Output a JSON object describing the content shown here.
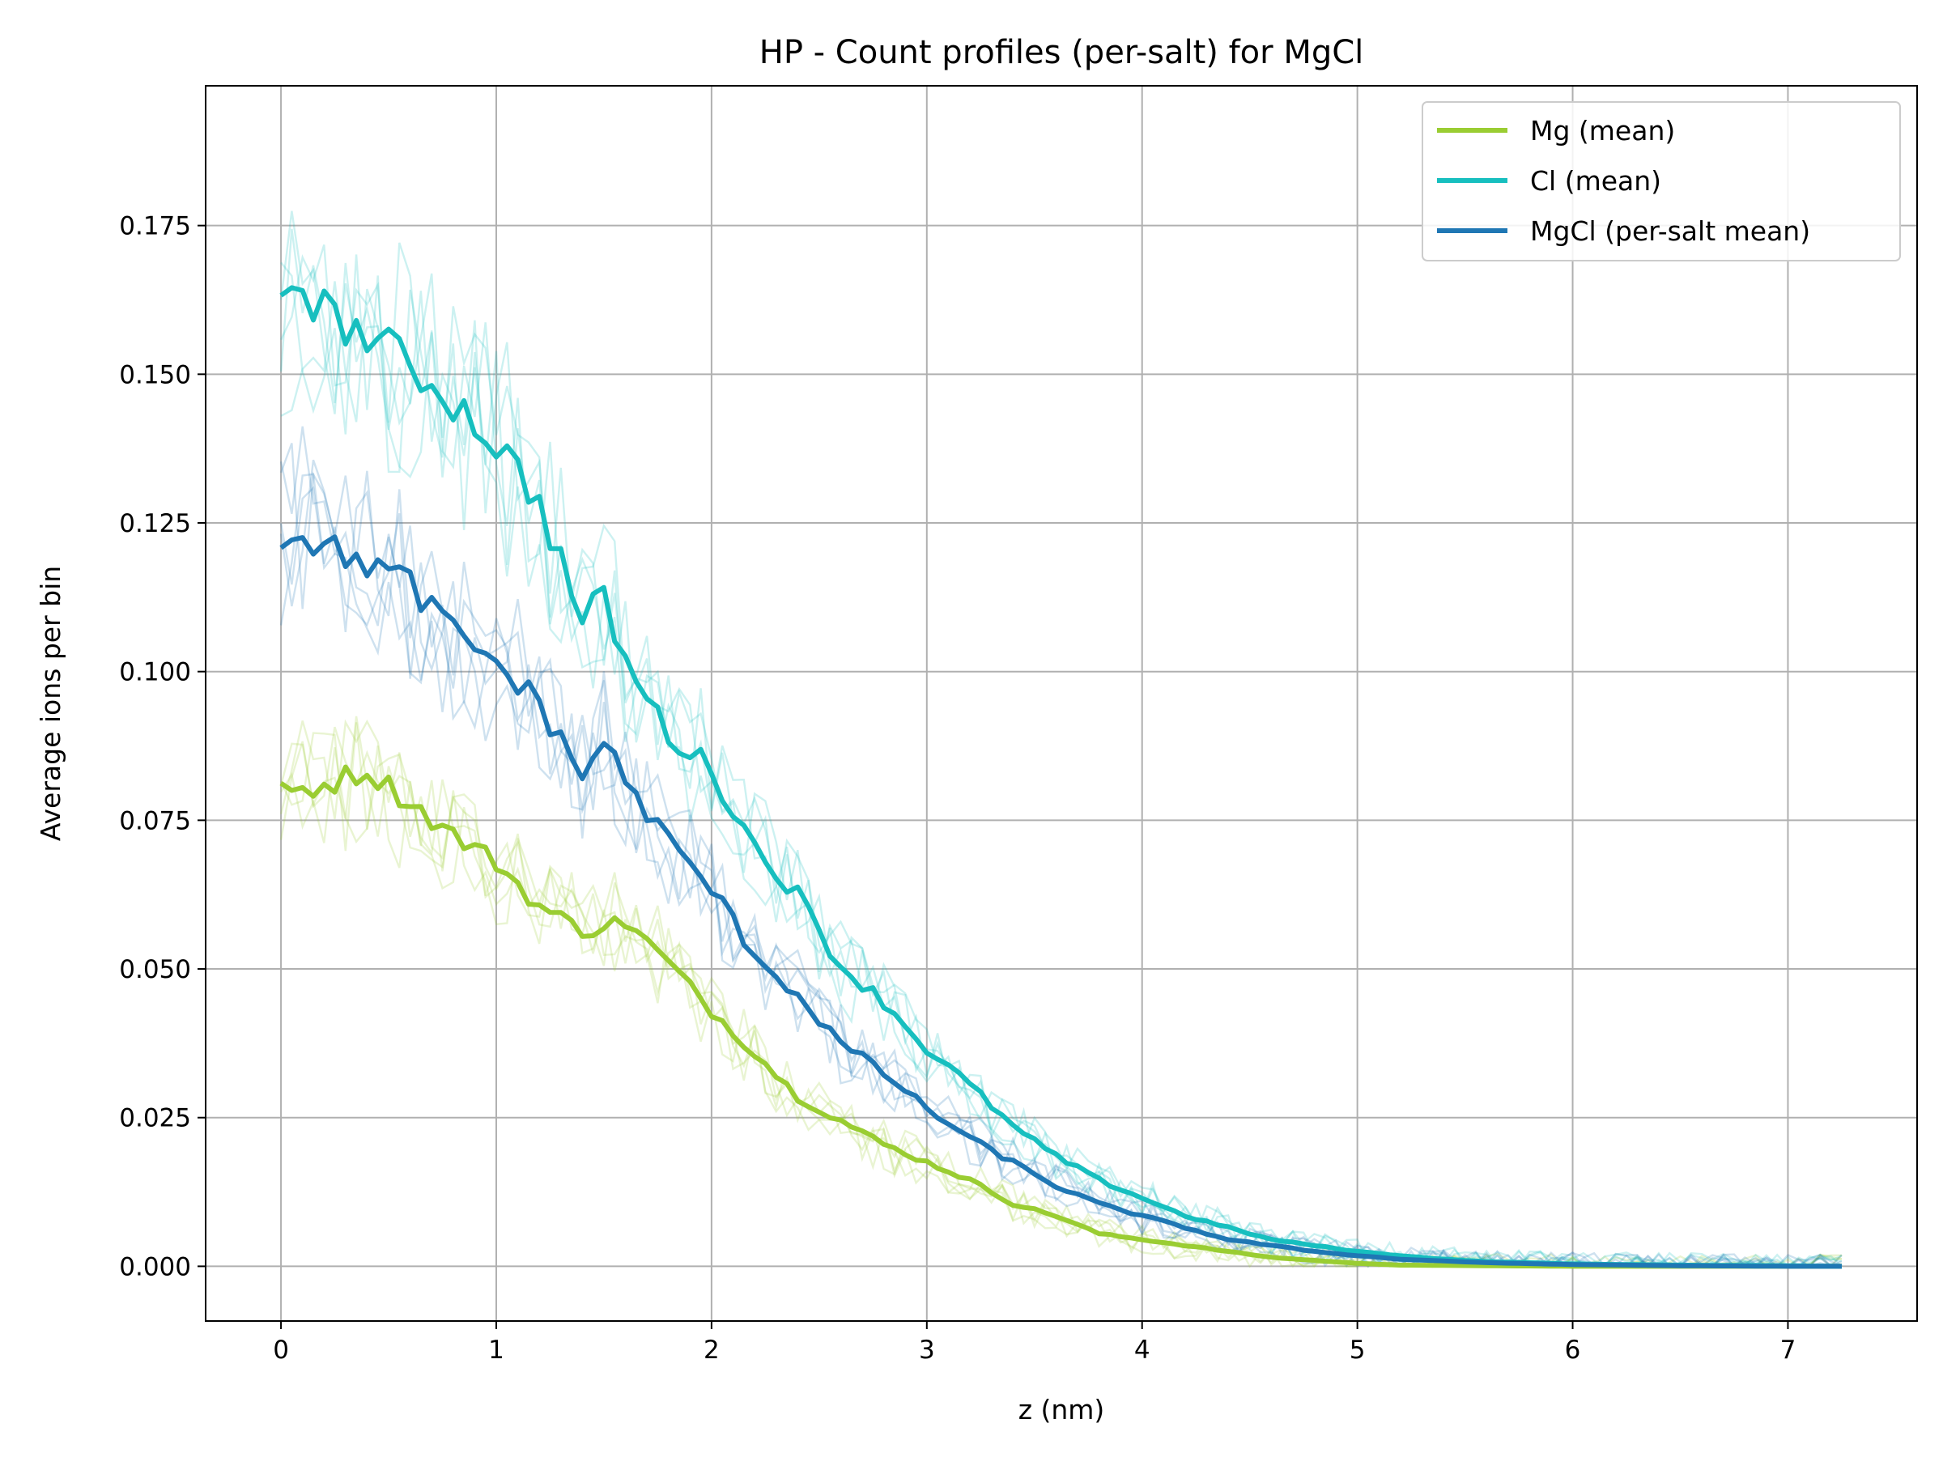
{
  "chart_data": {
    "type": "line",
    "title": "HP - Count profiles (per-salt) for MgCl",
    "xlabel": "z (nm)",
    "ylabel": "Average ions per bin",
    "xlim": [
      -0.35,
      7.6
    ],
    "ylim": [
      -0.0092,
      0.1985
    ],
    "xticks": [
      0,
      1,
      2,
      3,
      4,
      5,
      6,
      7
    ],
    "xtick_labels": [
      "0",
      "1",
      "2",
      "3",
      "4",
      "5",
      "6",
      "7"
    ],
    "yticks": [
      0.0,
      0.025,
      0.05,
      0.075,
      0.1,
      0.125,
      0.15,
      0.175
    ],
    "ytick_labels": [
      "0.000",
      "0.025",
      "0.050",
      "0.075",
      "0.100",
      "0.125",
      "0.150",
      "0.175"
    ],
    "grid": true,
    "legend": {
      "position": "top-right",
      "entries": [
        "Mg (mean)",
        "Cl (mean)",
        "MgCl (per-salt mean)"
      ]
    },
    "series": [
      {
        "name": "Mg (mean)",
        "color": "#9acd32",
        "x": [
          0.0,
          0.2,
          0.4,
          0.6,
          0.8,
          1.0,
          1.2,
          1.4,
          1.6,
          1.8,
          2.0,
          2.2,
          2.4,
          2.6,
          2.8,
          3.0,
          3.2,
          3.4,
          3.6,
          3.8,
          4.0,
          4.2,
          4.4,
          4.6,
          4.8,
          5.0,
          5.2,
          5.6,
          6.0,
          6.5,
          7.0,
          7.25
        ],
        "y": [
          0.0795,
          0.081,
          0.0835,
          0.078,
          0.0725,
          0.068,
          0.0605,
          0.0565,
          0.058,
          0.051,
          0.043,
          0.036,
          0.0285,
          0.0245,
          0.0205,
          0.0175,
          0.0145,
          0.0105,
          0.0085,
          0.0055,
          0.0045,
          0.0035,
          0.0025,
          0.0015,
          0.001,
          0.0005,
          0.0002,
          0.0001,
          0.0,
          0.0,
          0.0,
          0.0
        ]
      },
      {
        "name": "Cl (mean)",
        "color": "#17bfbf",
        "x": [
          0.0,
          0.1,
          0.2,
          0.4,
          0.6,
          0.8,
          1.0,
          1.2,
          1.4,
          1.5,
          1.6,
          1.8,
          2.0,
          2.2,
          2.4,
          2.6,
          2.8,
          3.0,
          3.2,
          3.4,
          3.6,
          3.8,
          4.0,
          4.2,
          4.4,
          4.6,
          4.8,
          5.0,
          5.2,
          5.4,
          5.6,
          6.0,
          6.5,
          7.0,
          7.25
        ],
        "y": [
          0.1645,
          0.1655,
          0.1605,
          0.1565,
          0.1515,
          0.1455,
          0.1385,
          0.1285,
          0.1085,
          0.1125,
          0.1015,
          0.0895,
          0.0835,
          0.0705,
          0.0625,
          0.0505,
          0.0445,
          0.0365,
          0.0305,
          0.0235,
          0.0185,
          0.0145,
          0.0115,
          0.0085,
          0.0065,
          0.0045,
          0.0035,
          0.0025,
          0.0018,
          0.0012,
          0.0008,
          0.0004,
          0.0002,
          0.0001,
          0.0
        ]
      },
      {
        "name": "MgCl (per-salt mean)",
        "color": "#1f77b4",
        "x": [
          0.0,
          0.1,
          0.2,
          0.4,
          0.6,
          0.8,
          1.0,
          1.2,
          1.4,
          1.5,
          1.6,
          1.8,
          2.0,
          2.2,
          2.4,
          2.6,
          2.8,
          3.0,
          3.2,
          3.4,
          3.6,
          3.8,
          4.0,
          4.2,
          4.4,
          4.6,
          4.8,
          5.0,
          5.2,
          5.4,
          5.6,
          6.0,
          6.5,
          7.0,
          7.25
        ],
        "y": [
          0.1225,
          0.124,
          0.1205,
          0.1185,
          0.1145,
          0.1065,
          0.1015,
          0.0945,
          0.0825,
          0.0885,
          0.0815,
          0.0715,
          0.0635,
          0.0525,
          0.0455,
          0.0375,
          0.0325,
          0.0265,
          0.0215,
          0.0175,
          0.0135,
          0.0105,
          0.0085,
          0.0065,
          0.0045,
          0.0035,
          0.0025,
          0.0018,
          0.0012,
          0.0009,
          0.0006,
          0.0003,
          0.0001,
          0.0,
          0.0
        ]
      }
    ]
  }
}
